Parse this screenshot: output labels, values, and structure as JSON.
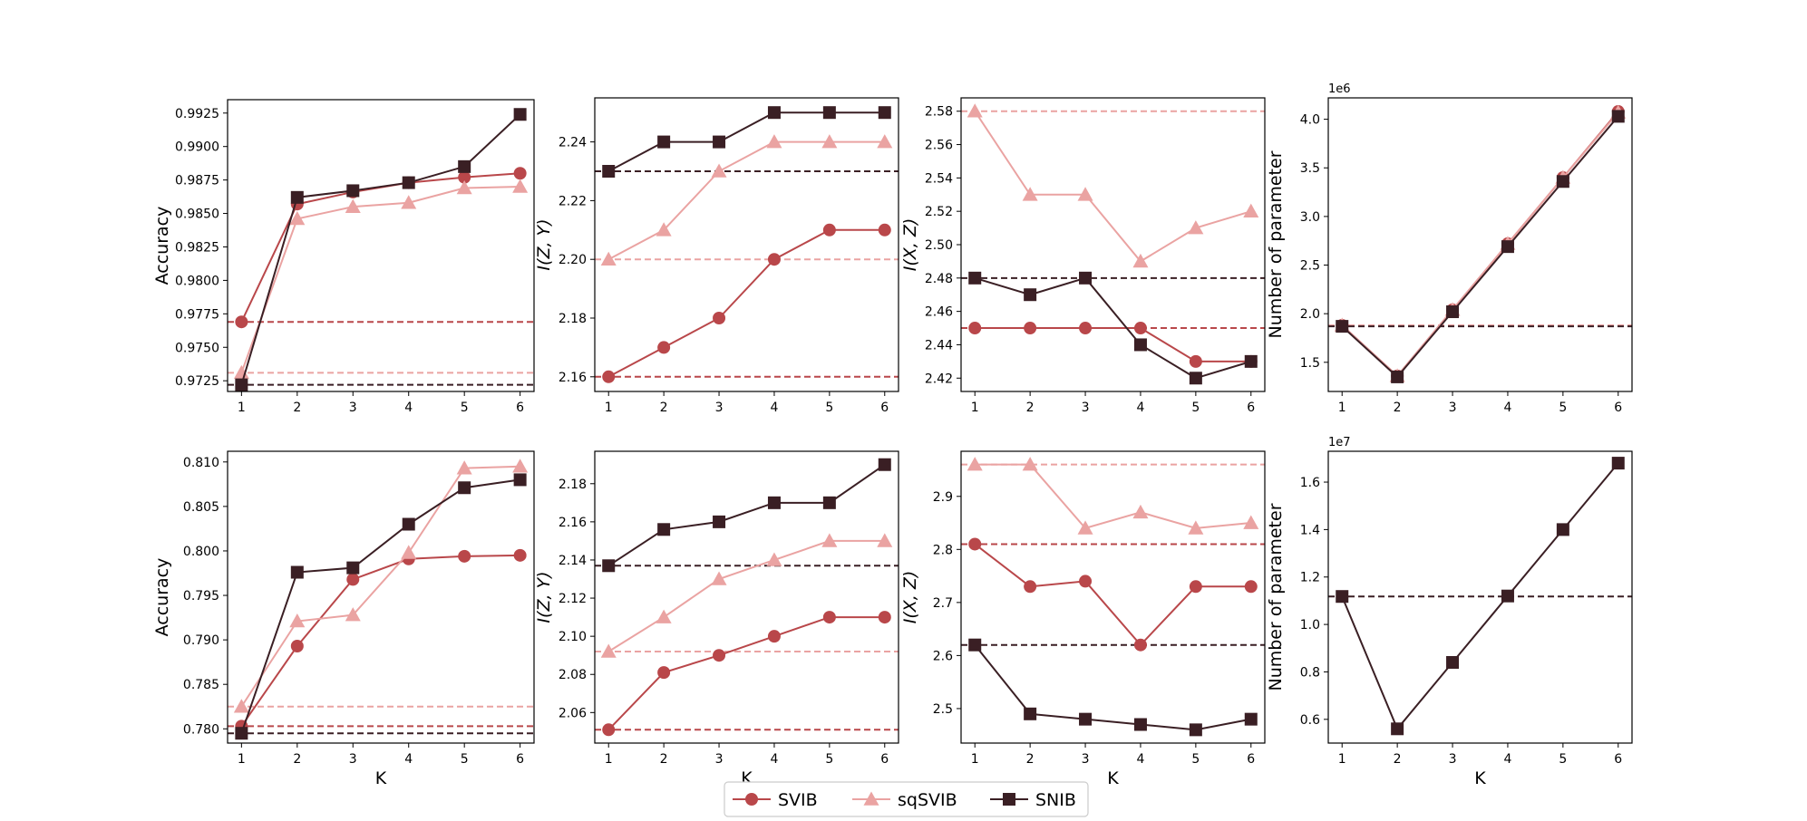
{
  "series_styles": [
    {
      "key": "SVIB",
      "color": "#b9474a",
      "marker": "circle"
    },
    {
      "key": "sqSVIB",
      "color": "#eaa3a2",
      "marker": "triangle"
    },
    {
      "key": "SNIB",
      "color": "#3a1f24",
      "marker": "square"
    }
  ],
  "legend": {
    "placement": "bottom-center",
    "entries": [
      "SVIB",
      "sqSVIB",
      "SNIB"
    ]
  },
  "chart_data": [
    {
      "type": "line",
      "id": "acc-top",
      "xlabel": "",
      "ylabel": "Accuracy",
      "offset_label": "",
      "x": [
        1,
        2,
        3,
        4,
        5,
        6
      ],
      "ylim": [
        0.9717,
        0.9935
      ],
      "yticks": [
        0.9725,
        0.975,
        0.9775,
        0.98,
        0.9825,
        0.985,
        0.9875,
        0.99,
        0.9925
      ],
      "ytick_labels": [
        "0.9725",
        "0.9750",
        "0.9775",
        "0.9800",
        "0.9825",
        "0.9850",
        "0.9875",
        "0.9900",
        "0.9925"
      ],
      "series": [
        {
          "name": "SVIB",
          "values": [
            0.9769,
            0.9857,
            0.9866,
            0.9873,
            0.9877,
            0.988
          ],
          "baseline": 0.9769
        },
        {
          "name": "sqSVIB",
          "values": [
            0.9731,
            0.9846,
            0.9855,
            0.9858,
            0.9869,
            0.987
          ],
          "baseline": 0.9731
        },
        {
          "name": "SNIB",
          "values": [
            0.9722,
            0.9862,
            0.9867,
            0.9873,
            0.9885,
            0.9924
          ],
          "baseline": 0.9722
        }
      ]
    },
    {
      "type": "line",
      "id": "izy-top",
      "xlabel": "",
      "ylabel": "I(Z, Y)",
      "offset_label": "",
      "x": [
        1,
        2,
        3,
        4,
        5,
        6
      ],
      "ylim": [
        2.155,
        2.255
      ],
      "yticks": [
        2.16,
        2.18,
        2.2,
        2.22,
        2.24
      ],
      "ytick_labels": [
        "2.16",
        "2.18",
        "2.20",
        "2.22",
        "2.24"
      ],
      "series": [
        {
          "name": "SVIB",
          "values": [
            2.16,
            2.17,
            2.18,
            2.2,
            2.21,
            2.21
          ],
          "baseline": 2.16
        },
        {
          "name": "sqSVIB",
          "values": [
            2.2,
            2.21,
            2.23,
            2.24,
            2.24,
            2.24
          ],
          "baseline": 2.2
        },
        {
          "name": "SNIB",
          "values": [
            2.23,
            2.24,
            2.24,
            2.25,
            2.25,
            2.25
          ],
          "baseline": 2.23
        }
      ]
    },
    {
      "type": "line",
      "id": "ixz-top",
      "xlabel": "",
      "ylabel": "I(X, Z)",
      "offset_label": "",
      "x": [
        1,
        2,
        3,
        4,
        5,
        6
      ],
      "ylim": [
        2.412,
        2.588
      ],
      "yticks": [
        2.42,
        2.44,
        2.46,
        2.48,
        2.5,
        2.52,
        2.54,
        2.56,
        2.58
      ],
      "ytick_labels": [
        "2.42",
        "2.44",
        "2.46",
        "2.48",
        "2.50",
        "2.52",
        "2.54",
        "2.56",
        "2.58"
      ],
      "series": [
        {
          "name": "SVIB",
          "values": [
            2.45,
            2.45,
            2.45,
            2.45,
            2.43,
            2.43
          ],
          "baseline": 2.45
        },
        {
          "name": "sqSVIB",
          "values": [
            2.58,
            2.53,
            2.53,
            2.49,
            2.51,
            2.52
          ],
          "baseline": 2.58
        },
        {
          "name": "SNIB",
          "values": [
            2.48,
            2.47,
            2.48,
            2.44,
            2.42,
            2.43
          ],
          "baseline": 2.48
        }
      ]
    },
    {
      "type": "line",
      "id": "params-top",
      "xlabel": "",
      "ylabel": "Number of parameter",
      "offset_label": "1e6",
      "x": [
        1,
        2,
        3,
        4,
        5,
        6
      ],
      "ylim": [
        1.2,
        4.22
      ],
      "yticks": [
        1.5,
        2.0,
        2.5,
        3.0,
        3.5,
        4.0
      ],
      "ytick_labels": [
        "1.5",
        "2.0",
        "2.5",
        "3.0",
        "3.5",
        "4.0"
      ],
      "series": [
        {
          "name": "SVIB",
          "values": [
            1.88,
            1.36,
            2.04,
            2.72,
            3.4,
            4.08
          ],
          "baseline": 1.88
        },
        {
          "name": "sqSVIB",
          "values": [
            1.88,
            1.36,
            2.04,
            2.72,
            3.4,
            4.07
          ],
          "baseline": 1.88
        },
        {
          "name": "SNIB",
          "values": [
            1.87,
            1.35,
            2.02,
            2.69,
            3.36,
            4.03
          ],
          "baseline": 1.87
        }
      ]
    },
    {
      "type": "line",
      "id": "acc-bottom",
      "xlabel": "K",
      "ylabel": "Accuracy",
      "offset_label": "",
      "x": [
        1,
        2,
        3,
        4,
        5,
        6
      ],
      "ylim": [
        0.7784,
        0.8112
      ],
      "yticks": [
        0.78,
        0.785,
        0.79,
        0.795,
        0.8,
        0.805,
        0.81
      ],
      "ytick_labels": [
        "0.780",
        "0.785",
        "0.790",
        "0.795",
        "0.800",
        "0.805",
        "0.810"
      ],
      "series": [
        {
          "name": "SVIB",
          "values": [
            0.7803,
            0.7893,
            0.7968,
            0.7991,
            0.7994,
            0.7995
          ],
          "baseline": 0.7803
        },
        {
          "name": "sqSVIB",
          "values": [
            0.7825,
            0.7921,
            0.7928,
            0.7998,
            0.8093,
            0.8095
          ],
          "baseline": 0.7825
        },
        {
          "name": "SNIB",
          "values": [
            0.7795,
            0.7976,
            0.7981,
            0.803,
            0.8071,
            0.808
          ],
          "baseline": 0.7795
        }
      ]
    },
    {
      "type": "line",
      "id": "izy-bottom",
      "xlabel": "K",
      "ylabel": "I(Z, Y)",
      "offset_label": "",
      "x": [
        1,
        2,
        3,
        4,
        5,
        6
      ],
      "ylim": [
        2.044,
        2.197
      ],
      "yticks": [
        2.06,
        2.08,
        2.1,
        2.12,
        2.14,
        2.16,
        2.18
      ],
      "ytick_labels": [
        "2.06",
        "2.08",
        "2.10",
        "2.12",
        "2.14",
        "2.16",
        "2.18"
      ],
      "series": [
        {
          "name": "SVIB",
          "values": [
            2.051,
            2.081,
            2.09,
            2.1,
            2.11,
            2.11
          ],
          "baseline": 2.051
        },
        {
          "name": "sqSVIB",
          "values": [
            2.092,
            2.11,
            2.13,
            2.14,
            2.15,
            2.15
          ],
          "baseline": 2.092
        },
        {
          "name": "SNIB",
          "values": [
            2.137,
            2.156,
            2.16,
            2.17,
            2.17,
            2.19
          ],
          "baseline": 2.137
        }
      ]
    },
    {
      "type": "line",
      "id": "ixz-bottom",
      "xlabel": "K",
      "ylabel": "I(X, Z)",
      "offset_label": "",
      "x": [
        1,
        2,
        3,
        4,
        5,
        6
      ],
      "ylim": [
        2.435,
        2.985
      ],
      "yticks": [
        2.5,
        2.6,
        2.7,
        2.8,
        2.9
      ],
      "ytick_labels": [
        "2.5",
        "2.6",
        "2.7",
        "2.8",
        "2.9"
      ],
      "series": [
        {
          "name": "SVIB",
          "values": [
            2.81,
            2.73,
            2.74,
            2.62,
            2.73,
            2.73
          ],
          "baseline": 2.81
        },
        {
          "name": "sqSVIB",
          "values": [
            2.96,
            2.96,
            2.84,
            2.87,
            2.84,
            2.85
          ],
          "baseline": 2.96
        },
        {
          "name": "SNIB",
          "values": [
            2.62,
            2.49,
            2.48,
            2.47,
            2.46,
            2.48
          ],
          "baseline": 2.62
        }
      ]
    },
    {
      "type": "line",
      "id": "params-bottom",
      "xlabel": "K",
      "ylabel": "Number of parameter",
      "offset_label": "1e7",
      "x": [
        1,
        2,
        3,
        4,
        5,
        6
      ],
      "ylim": [
        0.5,
        1.73
      ],
      "yticks": [
        0.6,
        0.8,
        1.0,
        1.2,
        1.4,
        1.6
      ],
      "ytick_labels": [
        "0.6",
        "0.8",
        "1.0",
        "1.2",
        "1.4",
        "1.6"
      ],
      "series": [
        {
          "name": "SNIB",
          "values": [
            1.118,
            0.56,
            0.84,
            1.12,
            1.4,
            1.68
          ],
          "baseline": 1.118
        }
      ]
    }
  ]
}
